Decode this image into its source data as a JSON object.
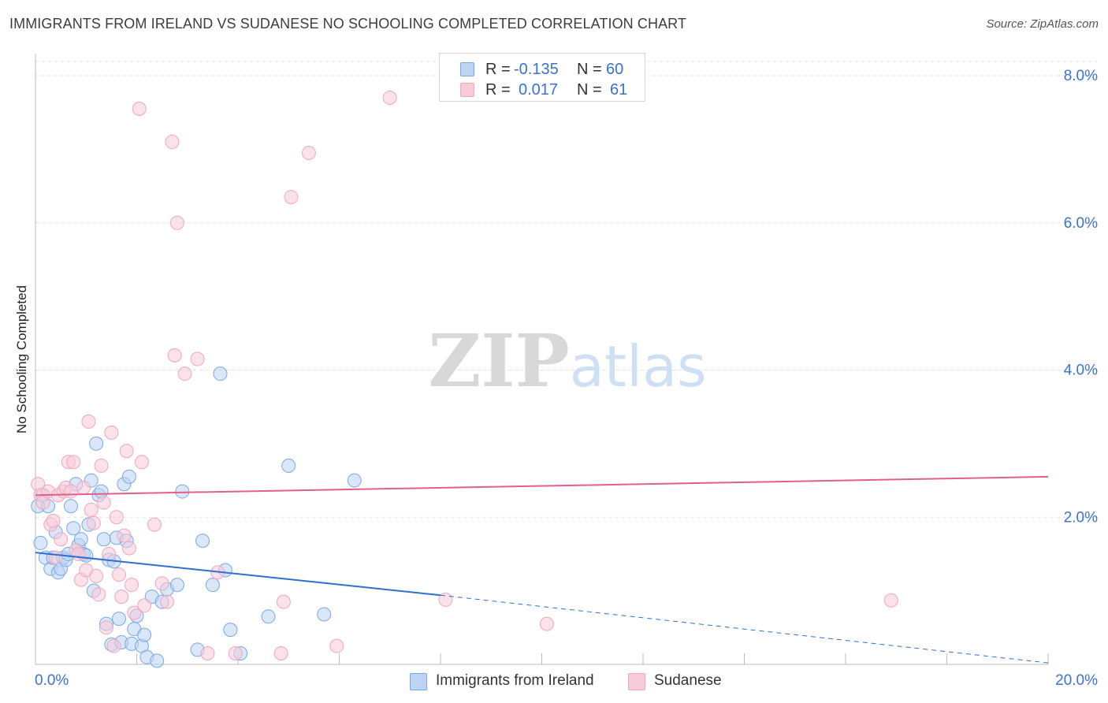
{
  "chart_data": {
    "type": "scatter",
    "title": "IMMIGRANTS FROM IRELAND VS SUDANESE NO SCHOOLING COMPLETED CORRELATION CHART",
    "source": "Source: ZipAtlas.com",
    "xlabel": "",
    "ylabel": "No Schooling Completed",
    "xlim": [
      0,
      20
    ],
    "ylim": [
      0,
      8.3
    ],
    "x_tick_labels": [
      {
        "value": 0,
        "label": "0.0%"
      },
      {
        "value": 20,
        "label": "20.0%"
      }
    ],
    "y_tick_labels": [
      {
        "value": 2,
        "label": "2.0%"
      },
      {
        "value": 4,
        "label": "4.0%"
      },
      {
        "value": 6,
        "label": "6.0%"
      },
      {
        "value": 8,
        "label": "8.0%"
      }
    ],
    "x_minor_ticks": [
      2,
      4,
      6,
      8,
      10,
      12,
      14,
      16,
      18,
      20
    ],
    "grid": true,
    "watermark": "ZIPatlas",
    "legend": {
      "position": "top-center",
      "rows": [
        {
          "series": "Immigrants from Ireland",
          "r_label": "R =",
          "r_value": "-0.135",
          "n_label": "N =",
          "n_value": "60"
        },
        {
          "series": "Sudanese",
          "r_label": "R =",
          "r_value": "0.017",
          "n_label": "N =",
          "n_value": "61"
        }
      ]
    },
    "series": [
      {
        "name": "Immigrants from Ireland",
        "color": "#7aa8e8",
        "fill": "#bcd3f3",
        "line_color": "#2f6fd0",
        "trend": {
          "x0": 0,
          "y0": 1.52,
          "x1": 8,
          "y1": 0.94,
          "dash_to_x": 20,
          "dash_to_y": 0.02
        },
        "points": [
          [
            0.05,
            2.15
          ],
          [
            0.1,
            1.65
          ],
          [
            0.15,
            2.3
          ],
          [
            0.2,
            1.45
          ],
          [
            0.25,
            2.15
          ],
          [
            0.3,
            1.3
          ],
          [
            0.35,
            1.45
          ],
          [
            0.4,
            1.8
          ],
          [
            0.45,
            1.25
          ],
          [
            0.5,
            1.3
          ],
          [
            0.55,
            1.45
          ],
          [
            0.6,
            1.42
          ],
          [
            0.65,
            1.5
          ],
          [
            0.7,
            2.15
          ],
          [
            0.75,
            1.85
          ],
          [
            0.8,
            2.45
          ],
          [
            0.85,
            1.62
          ],
          [
            0.9,
            1.7
          ],
          [
            0.95,
            1.5
          ],
          [
            1.0,
            1.48
          ],
          [
            1.05,
            1.9
          ],
          [
            1.1,
            2.5
          ],
          [
            1.15,
            1.0
          ],
          [
            1.2,
            3.0
          ],
          [
            1.25,
            2.3
          ],
          [
            1.3,
            2.35
          ],
          [
            1.35,
            1.7
          ],
          [
            1.4,
            0.55
          ],
          [
            1.45,
            1.42
          ],
          [
            1.5,
            0.27
          ],
          [
            1.55,
            1.4
          ],
          [
            1.6,
            1.72
          ],
          [
            1.65,
            0.62
          ],
          [
            1.7,
            0.3
          ],
          [
            1.75,
            2.45
          ],
          [
            1.8,
            1.68
          ],
          [
            1.85,
            2.55
          ],
          [
            1.9,
            0.28
          ],
          [
            1.95,
            0.48
          ],
          [
            2.0,
            0.66
          ],
          [
            2.1,
            0.25
          ],
          [
            2.15,
            0.4
          ],
          [
            2.2,
            0.1
          ],
          [
            2.3,
            0.92
          ],
          [
            2.4,
            0.05
          ],
          [
            2.5,
            0.85
          ],
          [
            2.6,
            1.02
          ],
          [
            2.8,
            1.08
          ],
          [
            2.9,
            2.35
          ],
          [
            3.2,
            0.2
          ],
          [
            3.3,
            1.68
          ],
          [
            3.5,
            1.08
          ],
          [
            3.65,
            3.95
          ],
          [
            3.75,
            1.28
          ],
          [
            3.85,
            0.47
          ],
          [
            4.05,
            0.15
          ],
          [
            4.6,
            0.65
          ],
          [
            5.0,
            2.7
          ],
          [
            5.7,
            0.68
          ],
          [
            6.3,
            2.5
          ]
        ]
      },
      {
        "name": "Sudanese",
        "color": "#f0a6bd",
        "fill": "#f8cbd8",
        "line_color": "#e0608a",
        "trend": {
          "x0": 0,
          "y0": 2.3,
          "x1": 20,
          "y1": 2.55
        },
        "points": [
          [
            0.05,
            2.45
          ],
          [
            0.1,
            2.3
          ],
          [
            0.15,
            2.2
          ],
          [
            0.25,
            2.35
          ],
          [
            0.3,
            1.9
          ],
          [
            0.35,
            1.95
          ],
          [
            0.4,
            1.45
          ],
          [
            0.45,
            2.3
          ],
          [
            0.5,
            1.7
          ],
          [
            0.55,
            2.35
          ],
          [
            0.6,
            2.4
          ],
          [
            0.65,
            2.75
          ],
          [
            0.7,
            2.35
          ],
          [
            0.75,
            2.75
          ],
          [
            0.8,
            1.55
          ],
          [
            0.85,
            1.5
          ],
          [
            0.9,
            1.15
          ],
          [
            0.95,
            2.4
          ],
          [
            1.0,
            1.28
          ],
          [
            1.05,
            3.3
          ],
          [
            1.1,
            2.1
          ],
          [
            1.15,
            1.92
          ],
          [
            1.2,
            1.2
          ],
          [
            1.25,
            0.95
          ],
          [
            1.3,
            2.7
          ],
          [
            1.35,
            2.2
          ],
          [
            1.4,
            0.5
          ],
          [
            1.45,
            1.5
          ],
          [
            1.5,
            3.15
          ],
          [
            1.55,
            0.25
          ],
          [
            1.6,
            2.0
          ],
          [
            1.65,
            1.22
          ],
          [
            1.7,
            0.92
          ],
          [
            1.75,
            1.75
          ],
          [
            1.8,
            2.9
          ],
          [
            1.85,
            1.58
          ],
          [
            1.9,
            1.08
          ],
          [
            1.95,
            0.7
          ],
          [
            2.05,
            7.55
          ],
          [
            2.1,
            2.75
          ],
          [
            2.15,
            0.8
          ],
          [
            2.35,
            1.9
          ],
          [
            2.5,
            1.1
          ],
          [
            2.6,
            0.85
          ],
          [
            2.7,
            7.1
          ],
          [
            2.75,
            4.2
          ],
          [
            2.8,
            6.0
          ],
          [
            2.95,
            3.95
          ],
          [
            3.2,
            4.15
          ],
          [
            3.4,
            0.15
          ],
          [
            3.6,
            1.25
          ],
          [
            3.95,
            0.15
          ],
          [
            4.85,
            0.15
          ],
          [
            4.9,
            0.85
          ],
          [
            5.05,
            6.35
          ],
          [
            5.4,
            6.95
          ],
          [
            5.95,
            0.25
          ],
          [
            7.0,
            7.7
          ],
          [
            8.1,
            0.88
          ],
          [
            10.1,
            0.55
          ],
          [
            16.9,
            0.87
          ]
        ]
      }
    ]
  }
}
